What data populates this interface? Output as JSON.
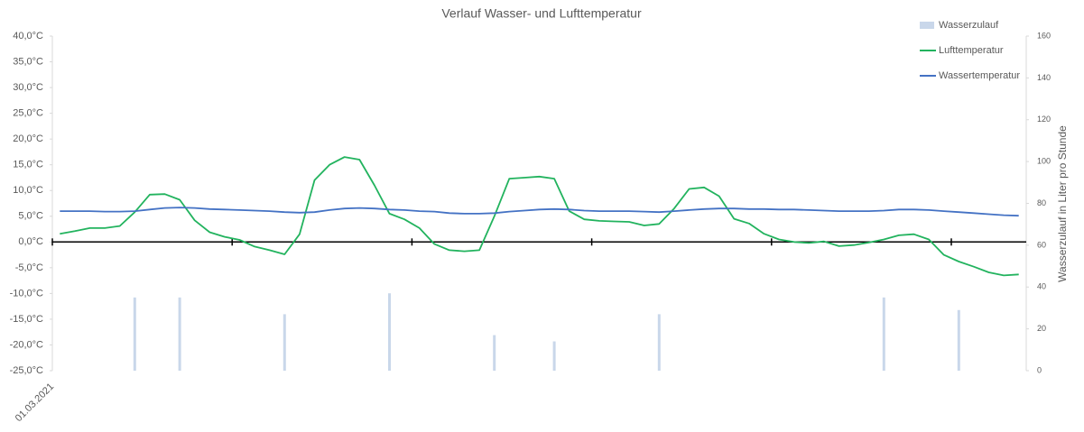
{
  "chart_data": {
    "type": "line",
    "title": "Verlauf Wasser- und Lufttemperatur",
    "y2_label": "Wasserzulauf in Liter pro Stunde",
    "categories": [
      "01.03.2021",
      null,
      null,
      null,
      null,
      null,
      null,
      null,
      null,
      null,
      null,
      null,
      null,
      null,
      null,
      null,
      null,
      null,
      null,
      null,
      null,
      null,
      null,
      null,
      null,
      null,
      null,
      null,
      null,
      null,
      null,
      null,
      null,
      null,
      null,
      null,
      null,
      null,
      null,
      null,
      null,
      null,
      null,
      null,
      null,
      null,
      null,
      null,
      null,
      null,
      null,
      null,
      null,
      null,
      null,
      null,
      null,
      null,
      null,
      null,
      null,
      null,
      null,
      null,
      null
    ],
    "series": [
      {
        "name": "Wasserzulauf",
        "type": "bar",
        "axis": "y2",
        "color": "#c9d7ea",
        "values": [
          0,
          0,
          0,
          0,
          0,
          35,
          0,
          0,
          35,
          0,
          0,
          0,
          0,
          0,
          0,
          27,
          0,
          0,
          0,
          0,
          0,
          0,
          37,
          0,
          0,
          0,
          0,
          0,
          0,
          17,
          0,
          0,
          0,
          14,
          0,
          0,
          0,
          0,
          0,
          0,
          27,
          0,
          0,
          0,
          0,
          0,
          0,
          0,
          0,
          0,
          0,
          0,
          0,
          0,
          0,
          35,
          0,
          0,
          0,
          0,
          29,
          0,
          0,
          0,
          0
        ]
      },
      {
        "name": "Lufttemperatur",
        "type": "line",
        "color": "#22b35e",
        "values": [
          1.6,
          2.1,
          2.7,
          2.7,
          3.1,
          5.8,
          9.2,
          9.3,
          8.2,
          4.2,
          1.9,
          1.0,
          0.4,
          -0.9,
          -1.6,
          -2.4,
          1.5,
          12,
          15,
          16.5,
          16,
          11,
          5.5,
          4.4,
          2.7,
          -0.4,
          -1.6,
          -1.8,
          -1.6,
          5,
          12.3,
          12.5,
          12.7,
          12.3,
          6,
          4.4,
          4.1,
          4,
          3.9,
          3.2,
          3.5,
          6.5,
          10.3,
          10.6,
          8.9,
          4.5,
          3.6,
          1.6,
          0.5,
          0,
          -0.2,
          0.1,
          -0.8,
          -0.6,
          -0.1,
          0.5,
          1.3,
          1.5,
          0.5,
          -2.5,
          -3.8,
          -4.8,
          -5.9,
          -6.5,
          -6.3
        ]
      },
      {
        "name": "Wassertemperatur",
        "type": "line",
        "color": "#4472c4",
        "values": [
          6.0,
          6.0,
          6.0,
          5.9,
          5.9,
          6.0,
          6.3,
          6.6,
          6.7,
          6.6,
          6.4,
          6.3,
          6.2,
          6.1,
          6.0,
          5.8,
          5.7,
          5.8,
          6.2,
          6.5,
          6.6,
          6.5,
          6.3,
          6.2,
          6.0,
          5.9,
          5.6,
          5.5,
          5.5,
          5.6,
          5.9,
          6.1,
          6.3,
          6.4,
          6.3,
          6.1,
          6.0,
          6.0,
          6.0,
          5.9,
          5.8,
          6.0,
          6.2,
          6.4,
          6.5,
          6.5,
          6.4,
          6.4,
          6.3,
          6.3,
          6.2,
          6.1,
          6.0,
          6.0,
          6.0,
          6.1,
          6.3,
          6.3,
          6.2,
          6.0,
          5.8,
          5.6,
          5.4,
          5.2,
          5.1
        ]
      }
    ],
    "ylim": [
      -25,
      40
    ],
    "yticks": [
      {
        "value": -25,
        "label": "-25,0°C"
      },
      {
        "value": -20,
        "label": "-20,0°C"
      },
      {
        "value": -15,
        "label": "-15,0°C"
      },
      {
        "value": -10,
        "label": "-10,0°C"
      },
      {
        "value": -5,
        "label": "-5,0°C"
      },
      {
        "value": 0,
        "label": "0,0°C"
      },
      {
        "value": 5,
        "label": "5,0°C"
      },
      {
        "value": 10,
        "label": "10,0°C"
      },
      {
        "value": 15,
        "label": "15,0°C"
      },
      {
        "value": 20,
        "label": "20,0°C"
      },
      {
        "value": 25,
        "label": "25,0°C"
      },
      {
        "value": 30,
        "label": "30,0°C"
      },
      {
        "value": 35,
        "label": "35,0°C"
      },
      {
        "value": 40,
        "label": "40,0°C"
      }
    ],
    "y2lim": [
      0,
      160
    ],
    "y2ticks": [
      0,
      20,
      40,
      60,
      80,
      100,
      120,
      140,
      160
    ],
    "grid": false,
    "legend": "top-right"
  }
}
